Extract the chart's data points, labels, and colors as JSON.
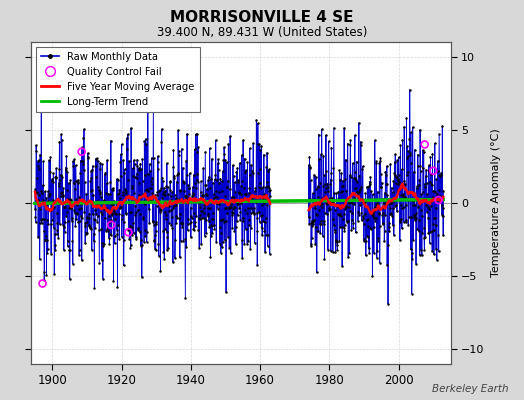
{
  "title": "MORRISONVILLE 4 SE",
  "subtitle": "39.400 N, 89.431 W (United States)",
  "ylabel": "Temperature Anomaly (°C)",
  "credit": "Berkeley Earth",
  "year_start": 1895,
  "year_end": 2013,
  "gap_start": 1963,
  "gap_end": 1974,
  "ylim": [
    -11,
    11
  ],
  "yticks": [
    -10,
    -5,
    0,
    5,
    10
  ],
  "xticks": [
    1900,
    1920,
    1940,
    1960,
    1980,
    2000
  ],
  "stem_color": "#8888ff",
  "line_color": "#0000cc",
  "dot_color": "#000000",
  "ma_color": "#ff0000",
  "trend_color": "#00bb00",
  "qc_color": "#ff00ff",
  "bg_color": "#d8d8d8",
  "plot_bg": "#ffffff",
  "title_fontsize": 11,
  "subtitle_fontsize": 8.5,
  "seed": 12345
}
